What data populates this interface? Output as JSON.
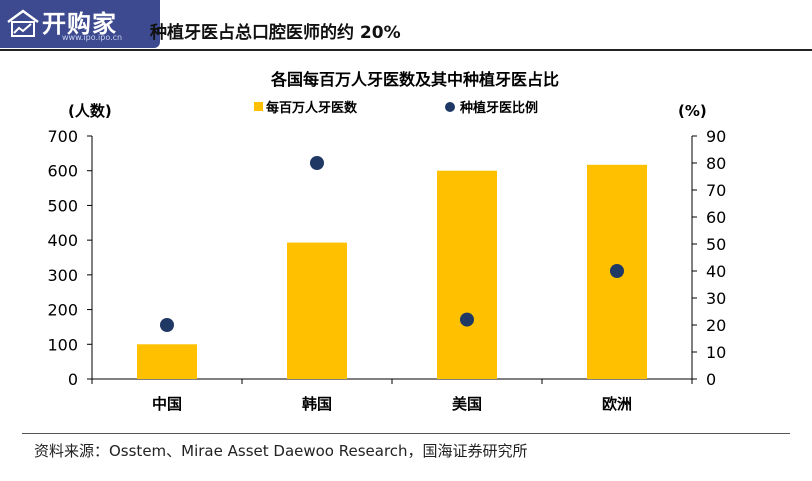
{
  "watermark": {
    "brand": "开购家",
    "url": "www.ipo.ipo.cn"
  },
  "doc_title": "种植牙医占总口腔医师的约 20%",
  "source_text": "资料来源：Osstem、Mirae Asset Daewoo Research，国海证券研究所",
  "colors": {
    "bar": "#FFC000",
    "dot": "#1F3864",
    "axis": "#000000"
  },
  "chart_data": {
    "type": "bar",
    "title": "各国每百万人牙医数及其中种植牙医占比",
    "categories": [
      "中国",
      "韩国",
      "美国",
      "欧洲"
    ],
    "series": [
      {
        "name": "每百万人牙医数",
        "type": "bar",
        "axis": "left",
        "values": [
          100,
          393,
          600,
          617
        ]
      },
      {
        "name": "种植牙医比例",
        "type": "scatter",
        "axis": "right",
        "values": [
          20,
          80,
          22,
          40
        ]
      }
    ],
    "ylabel_left": "(人数)",
    "ylabel_right": "(%)",
    "ylim_left": [
      0,
      700
    ],
    "ylim_right": [
      0,
      90
    ],
    "yticks_left": [
      "0",
      "100",
      "200",
      "300",
      "400",
      "500",
      "600",
      "700"
    ],
    "yticks_right": [
      "0",
      "10",
      "20",
      "30",
      "40",
      "50",
      "60",
      "70",
      "80",
      "90"
    ],
    "legend_position": "top-center",
    "grid": false
  }
}
